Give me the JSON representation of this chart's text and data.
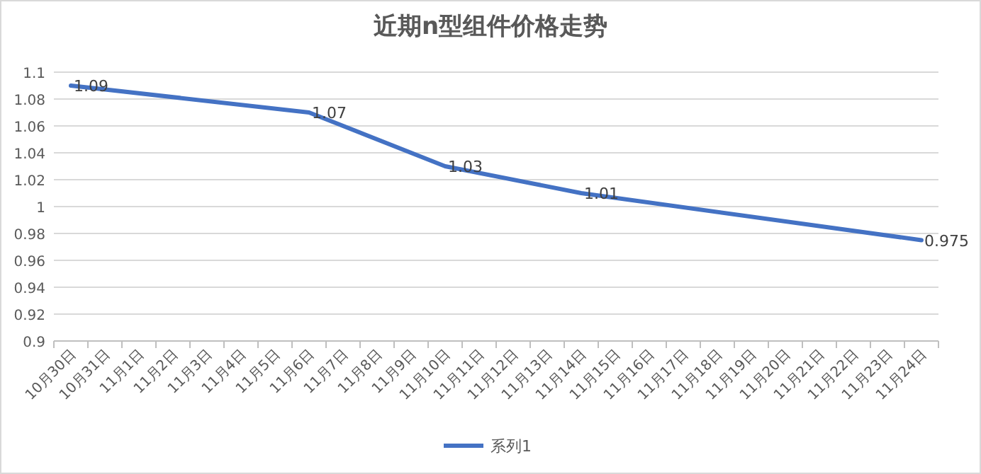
{
  "chart_data": {
    "type": "line",
    "title": "近期n型组件价格走势",
    "categories": [
      "10月30日",
      "10月31日",
      "11月1日",
      "11月2日",
      "11月3日",
      "11月4日",
      "11月5日",
      "11月6日",
      "11月7日",
      "11月8日",
      "11月9日",
      "11月10日",
      "11月11日",
      "11月12日",
      "11月13日",
      "11月14日",
      "11月15日",
      "11月16日",
      "11月17日",
      "11月18日",
      "11月19日",
      "11月20日",
      "11月21日",
      "11月22日",
      "11月23日",
      "11月24日"
    ],
    "series": [
      {
        "name": "系列1",
        "color": "#4472c4",
        "values": [
          1.09,
          null,
          null,
          null,
          null,
          null,
          null,
          1.07,
          null,
          null,
          null,
          1.03,
          null,
          null,
          null,
          1.01,
          null,
          null,
          null,
          null,
          null,
          null,
          null,
          null,
          null,
          0.975
        ]
      }
    ],
    "ylim": [
      0.9,
      1.1
    ],
    "yticks": [
      0.9,
      0.92,
      0.94,
      0.96,
      0.98,
      1,
      1.02,
      1.04,
      1.06,
      1.08,
      1.1
    ],
    "grid": "y",
    "legend": "bottom",
    "data_labels": true,
    "marker": "none",
    "line_style": "solid"
  }
}
